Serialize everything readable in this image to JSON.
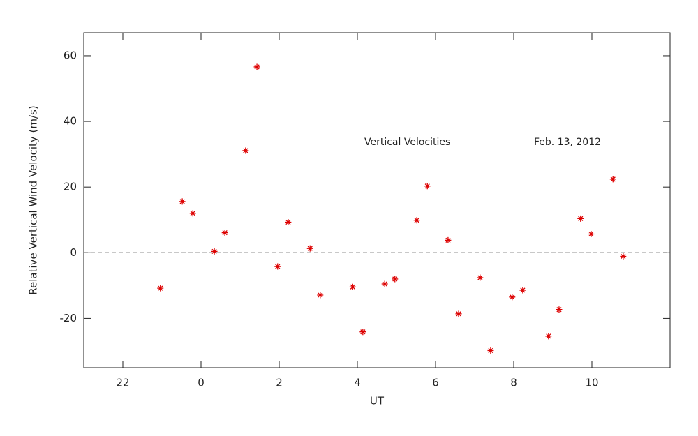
{
  "chart_data": {
    "type": "scatter",
    "xlabel": "UT",
    "ylabel": "Relative Vertical Wind Velocity (m/s)",
    "annotations": [
      "Vertical Velocities",
      "Feb. 13, 2012"
    ],
    "xlim": [
      -3,
      12
    ],
    "ylim": [
      -35,
      67
    ],
    "xticks": [
      {
        "value": -2,
        "label": "22"
      },
      0,
      2,
      4,
      6,
      8,
      10
    ],
    "yticks": [
      -20,
      0,
      20,
      40,
      60
    ],
    "zero_line": true,
    "series": [
      {
        "color": "#dd0000",
        "marker": "asterisk",
        "x": [
          -1.04,
          -0.48,
          -0.21,
          0.34,
          0.61,
          1.14,
          1.43,
          1.96,
          2.23,
          2.79,
          3.05,
          3.88,
          4.14,
          4.7,
          4.96,
          5.52,
          5.79,
          6.32,
          6.59,
          7.14,
          7.41,
          7.96,
          8.23,
          8.89,
          9.16,
          9.71,
          9.98,
          10.54,
          10.8
        ],
        "values": [
          -10.8,
          15.6,
          12.0,
          0.4,
          6.1,
          31.1,
          56.6,
          -4.2,
          9.3,
          1.3,
          -12.9,
          -10.4,
          -24.1,
          -9.5,
          -8.0,
          9.9,
          20.3,
          3.8,
          -18.6,
          -7.6,
          -29.8,
          -13.5,
          -11.4,
          -25.4,
          -17.3,
          10.4,
          5.7,
          22.4,
          -1.1
        ]
      }
    ]
  }
}
